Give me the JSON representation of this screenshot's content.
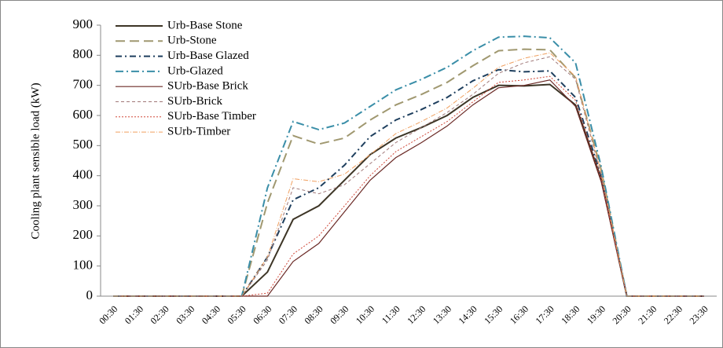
{
  "chart_data": {
    "type": "line",
    "ylabel": "Cooling plant sensible load (kW)",
    "categories": [
      "00:30",
      "01:30",
      "02:30",
      "03:30",
      "04:30",
      "05:30",
      "06:30",
      "07:30",
      "08:30",
      "09:30",
      "10:30",
      "11:30",
      "12:30",
      "13:30",
      "14:30",
      "15:30",
      "16:30",
      "17:30",
      "18:30",
      "19:30",
      "20:30",
      "21:30",
      "22:30",
      "23:30"
    ],
    "ylim": [
      0,
      900
    ],
    "yticks": [
      0,
      100,
      200,
      300,
      400,
      500,
      600,
      700,
      800,
      900
    ],
    "legend": "upper-left",
    "series": [
      {
        "name": "Urb-Base Stone",
        "color": "#3d3526",
        "width": 2,
        "dash": "",
        "values": [
          0,
          0,
          0,
          0,
          0,
          0,
          80,
          255,
          300,
          385,
          470,
          525,
          560,
          600,
          660,
          700,
          698,
          703,
          635,
          390,
          0,
          0,
          0,
          0
        ]
      },
      {
        "name": "Urb-Stone",
        "color": "#a09870",
        "width": 2,
        "dash": "12,6",
        "values": [
          0,
          0,
          0,
          0,
          0,
          0,
          310,
          533,
          505,
          525,
          585,
          635,
          670,
          710,
          765,
          815,
          820,
          818,
          725,
          420,
          0,
          0,
          0,
          0
        ]
      },
      {
        "name": "Urb-Base Glazed",
        "color": "#1e3f5e",
        "width": 2,
        "dash": "8,4,2,4",
        "values": [
          0,
          0,
          0,
          0,
          0,
          0,
          130,
          320,
          360,
          435,
          530,
          585,
          620,
          660,
          715,
          752,
          745,
          748,
          660,
          400,
          0,
          0,
          0,
          0
        ]
      },
      {
        "name": "Urb-Glazed",
        "color": "#3a8ea8",
        "width": 2,
        "dash": "10,4,2,4",
        "values": [
          0,
          0,
          0,
          0,
          0,
          0,
          360,
          580,
          553,
          575,
          630,
          685,
          720,
          760,
          815,
          860,
          863,
          858,
          775,
          430,
          0,
          0,
          0,
          0
        ]
      },
      {
        "name": "SUrb-Base Brick",
        "color": "#6b2a26",
        "width": 1.2,
        "dash": "",
        "values": [
          0,
          0,
          0,
          0,
          0,
          0,
          0,
          115,
          175,
          280,
          385,
          460,
          510,
          565,
          635,
          692,
          700,
          718,
          630,
          380,
          0,
          0,
          0,
          0
        ]
      },
      {
        "name": "SUrb-Brick",
        "color": "#a07878",
        "width": 1,
        "dash": "4,3",
        "values": [
          0,
          0,
          0,
          0,
          0,
          0,
          120,
          360,
          340,
          370,
          440,
          510,
          560,
          610,
          670,
          740,
          775,
          795,
          720,
          400,
          0,
          0,
          0,
          0
        ]
      },
      {
        "name": "SUrb-Base Timber",
        "color": "#d04838",
        "width": 1,
        "dash": "2,2",
        "values": [
          0,
          0,
          0,
          0,
          0,
          0,
          10,
          140,
          200,
          300,
          400,
          480,
          530,
          580,
          645,
          710,
          718,
          730,
          650,
          390,
          0,
          0,
          0,
          0
        ]
      },
      {
        "name": "SUrb-Timber",
        "color": "#f0a060",
        "width": 1,
        "dash": "6,2,1,2",
        "values": [
          0,
          0,
          0,
          0,
          0,
          0,
          130,
          390,
          380,
          405,
          470,
          540,
          580,
          625,
          690,
          760,
          790,
          808,
          730,
          410,
          0,
          0,
          0,
          0
        ]
      }
    ]
  }
}
